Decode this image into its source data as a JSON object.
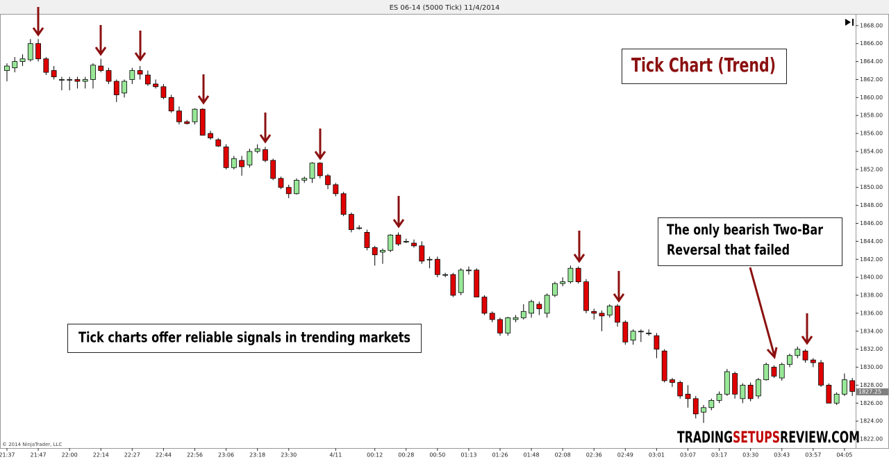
{
  "chart_data": {
    "type": "candlestick",
    "title": "ES 06-14 (5000 Tick)  11/4/2014",
    "annotations": {
      "heading": "Tick Chart (Trend)",
      "note": "Tick charts offer reliable signals in trending markets",
      "callout": [
        "The only bearish Two-Bar",
        "Reversal that failed"
      ],
      "watermark": [
        "TRADING",
        "SETUPS",
        "REVIEW.COM"
      ],
      "copyright": "© 2014 NinjaTrader, LLC"
    },
    "up_color": "#98e898",
    "down_color": "#e00000",
    "ylim": [
      1821,
      1869.3
    ],
    "yticks": [
      {
        "value": 1822,
        "label": "1822.00"
      },
      {
        "value": 1824,
        "label": "1824.00"
      },
      {
        "value": 1826,
        "label": "1826.00"
      },
      {
        "value": 1828,
        "label": "1828.00"
      },
      {
        "value": 1830,
        "label": "1830.00"
      },
      {
        "value": 1832,
        "label": "1832.00"
      },
      {
        "value": 1834,
        "label": "1834.00"
      },
      {
        "value": 1836,
        "label": "1836.00"
      },
      {
        "value": 1838,
        "label": "1838.00"
      },
      {
        "value": 1840,
        "label": "1840.00"
      },
      {
        "value": 1842,
        "label": "1842.00"
      },
      {
        "value": 1844,
        "label": "1844.00"
      },
      {
        "value": 1846,
        "label": "1846.00"
      },
      {
        "value": 1848,
        "label": "1848.00"
      },
      {
        "value": 1850,
        "label": "1850.00"
      },
      {
        "value": 1852,
        "label": "1852.00"
      },
      {
        "value": 1854,
        "label": "1854.00"
      },
      {
        "value": 1856,
        "label": "1856.00"
      },
      {
        "value": 1858,
        "label": "1858.00"
      },
      {
        "value": 1860,
        "label": "1860.00"
      },
      {
        "value": 1862,
        "label": "1862.00"
      },
      {
        "value": 1864,
        "label": "1864.00"
      },
      {
        "value": 1866,
        "label": "1866.00"
      },
      {
        "value": 1868,
        "label": "1868.00"
      }
    ],
    "last_price": 1827.25,
    "categories": [
      "21:37",
      null,
      null,
      null,
      "21:47",
      null,
      null,
      null,
      "22:00",
      null,
      null,
      null,
      "22:14",
      null,
      null,
      null,
      "22:27",
      null,
      null,
      null,
      "22:44",
      null,
      null,
      null,
      "22:56",
      null,
      null,
      null,
      "23:06",
      null,
      null,
      null,
      "23:18",
      null,
      null,
      null,
      "23:30",
      null,
      null,
      null,
      null,
      null,
      "4/11",
      null,
      null,
      null,
      null,
      "00:12",
      null,
      null,
      null,
      "00:28",
      null,
      null,
      null,
      "00:50",
      null,
      null,
      null,
      "01:13",
      null,
      null,
      null,
      "01:26",
      null,
      null,
      null,
      "01:48",
      null,
      null,
      null,
      "02:08",
      null,
      null,
      null,
      "02:36",
      null,
      null,
      null,
      "02:49",
      null,
      null,
      null,
      "03:01",
      null,
      null,
      null,
      "03:07",
      null,
      null,
      null,
      "03:17",
      null,
      null,
      null,
      "03:30",
      null,
      null,
      null,
      "03:43",
      null,
      null,
      null,
      "03:57",
      null,
      null,
      null,
      "04:05",
      null
    ],
    "open": [
      1863,
      1863.3,
      1864,
      1864.2,
      1866,
      1864.3,
      1863,
      1862,
      1862,
      1862,
      1861.8,
      1862,
      1863.5,
      1863,
      1861.8,
      1860.5,
      1862,
      1863,
      1862.5,
      1861.5,
      1861.2,
      1860,
      1858.5,
      1857.3,
      1857.3,
      1858.7,
      1856,
      1855.3,
      1854.5,
      1852.2,
      1853,
      1852.5,
      1854,
      1854.2,
      1853,
      1851,
      1850,
      1849.3,
      1850.8,
      1851,
      1852.7,
      1851.3,
      1850.3,
      1849.3,
      1847,
      1845.5,
      1845,
      1843.3,
      1842.8,
      1843,
      1844.7,
      1844,
      1843.8,
      1843.5,
      1842,
      1842,
      1840.3,
      1840.3,
      1838.3,
      1840.8,
      1840.8,
      1837.8,
      1836,
      1835.3,
      1833.8,
      1835.3,
      1835.5,
      1836,
      1837,
      1836,
      1838,
      1839.3,
      1839.5,
      1841,
      1839.5,
      1836.2,
      1836,
      1835.8,
      1836.8,
      1835,
      1833,
      1834,
      1833.8,
      1833.5,
      1831.8,
      1828.6,
      1828.3,
      1827,
      1826.5,
      1825,
      1825.5,
      1826.3,
      1827,
      1829.3,
      1826.5,
      1828,
      1826.8,
      1828.6,
      1830,
      1828.8,
      1830.3,
      1831.3,
      1831.8,
      1830.8,
      1830.5,
      1828,
      1826,
      1827,
      1828.5
    ],
    "high": [
      1863.8,
      1864.5,
      1864.8,
      1866.5,
      1866.5,
      1864.5,
      1863.5,
      1862.3,
      1862.3,
      1862.3,
      1862.3,
      1863.8,
      1864.3,
      1863.3,
      1862,
      1862,
      1863.3,
      1863.5,
      1863,
      1862,
      1861.5,
      1860.3,
      1859,
      1857.5,
      1858.8,
      1858.8,
      1856.3,
      1855.5,
      1854.8,
      1853.5,
      1853.5,
      1854.3,
      1854.8,
      1854.5,
      1853.2,
      1851.2,
      1850.3,
      1851,
      1851.2,
      1852.8,
      1852.8,
      1851.5,
      1850.5,
      1849.5,
      1847.2,
      1845.8,
      1845.3,
      1843.5,
      1843.2,
      1844.8,
      1845,
      1844.3,
      1844.2,
      1844,
      1842.3,
      1842.3,
      1840.5,
      1840.5,
      1841,
      1841.2,
      1841,
      1838,
      1836.2,
      1835.5,
      1835.6,
      1835.8,
      1837,
      1837.5,
      1837.3,
      1838.2,
      1839.5,
      1840,
      1841.3,
      1841.2,
      1839.8,
      1836.5,
      1836.3,
      1837,
      1837,
      1835.2,
      1834.2,
      1834.2,
      1834.2,
      1833.8,
      1832,
      1828.8,
      1828.5,
      1828,
      1826.8,
      1825.8,
      1826.5,
      1827.3,
      1829.8,
      1829.5,
      1828.2,
      1828.3,
      1828.8,
      1830.5,
      1830.2,
      1830.5,
      1831.5,
      1832.3,
      1832,
      1831,
      1830.8,
      1828.2,
      1827.2,
      1829.3,
      1828.8
    ],
    "low": [
      1861.8,
      1862.8,
      1863.5,
      1864,
      1864,
      1862.5,
      1862,
      1860.8,
      1860.8,
      1861,
      1861,
      1861,
      1862.8,
      1861.5,
      1859.5,
      1860,
      1861.5,
      1862,
      1861.3,
      1861,
      1859.8,
      1858.3,
      1857,
      1857,
      1857,
      1855.8,
      1855.3,
      1854.5,
      1852,
      1852,
      1851.3,
      1852.2,
      1853.8,
      1852.8,
      1850.8,
      1849.8,
      1848.8,
      1849.2,
      1850.5,
      1850.5,
      1851,
      1849.8,
      1849,
      1846.8,
      1845,
      1845.3,
      1843,
      1841.3,
      1841.5,
      1842.8,
      1843.5,
      1843.8,
      1843.3,
      1841.5,
      1841,
      1840,
      1840,
      1837.8,
      1838,
      1840.3,
      1837.8,
      1835.8,
      1835,
      1833.5,
      1833.5,
      1835,
      1835.3,
      1835.5,
      1835.8,
      1835.5,
      1837.8,
      1839,
      1839.3,
      1839.3,
      1836,
      1835.3,
      1834,
      1835.5,
      1834.5,
      1832.5,
      1832.5,
      1832.8,
      1833.5,
      1831,
      1828.3,
      1827.8,
      1826.5,
      1825.5,
      1824.3,
      1823.8,
      1825.2,
      1826,
      1826.8,
      1826.5,
      1826,
      1826.2,
      1826.5,
      1828.5,
      1828.8,
      1828.5,
      1830,
      1831,
      1830.5,
      1830,
      1827.8,
      1826,
      1825.8,
      1826.8,
      1826.8
    ],
    "close": [
      1863.5,
      1864,
      1864.3,
      1866,
      1864.3,
      1862.8,
      1862.3,
      1862,
      1862,
      1861.8,
      1862,
      1863.6,
      1863,
      1861.8,
      1860.3,
      1861.8,
      1863,
      1862.6,
      1861.5,
      1861.2,
      1860,
      1858.5,
      1857.3,
      1857.1,
      1858.7,
      1855.8,
      1855.5,
      1854.6,
      1852.2,
      1853.2,
      1852.3,
      1854,
      1854.3,
      1853,
      1851,
      1850,
      1849.3,
      1850.8,
      1851,
      1852.7,
      1851.3,
      1850.3,
      1849.3,
      1847,
      1845.3,
      1845.5,
      1843.3,
      1842.5,
      1843,
      1844.7,
      1843.7,
      1844,
      1843.5,
      1841.8,
      1842,
      1840.3,
      1840.3,
      1838,
      1840.8,
      1840.8,
      1837.8,
      1836,
      1835.3,
      1833.8,
      1835.5,
      1835.5,
      1836.2,
      1837.3,
      1836.5,
      1838,
      1839.3,
      1839.5,
      1841,
      1839.5,
      1836.3,
      1836,
      1835.7,
      1836.8,
      1835,
      1832.8,
      1834,
      1834,
      1833.8,
      1832,
      1828.5,
      1828.3,
      1826.8,
      1826.5,
      1824.8,
      1825.5,
      1826.3,
      1827,
      1829.5,
      1827,
      1828,
      1826.5,
      1828.6,
      1830.3,
      1829,
      1830.3,
      1831.3,
      1832,
      1830.8,
      1830.5,
      1828,
      1826,
      1827,
      1828.6,
      1827.3
    ]
  }
}
